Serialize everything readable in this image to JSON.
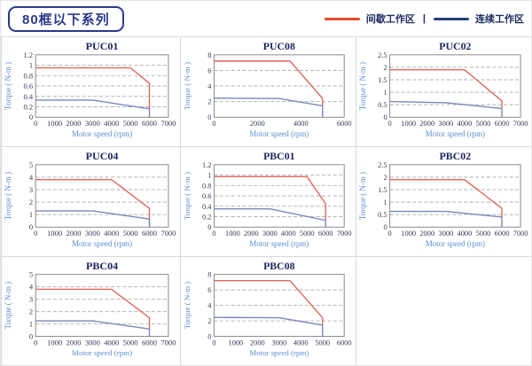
{
  "header": {
    "title_badge": {
      "label": "80框以下系列",
      "color": "#2b3a8c"
    },
    "legend": {
      "separator": "|",
      "items": [
        {
          "label": "间歇工作区",
          "swatch_color": "#e64a2e"
        },
        {
          "label": "连续工作区",
          "swatch_color": "#24407e"
        }
      ]
    }
  },
  "chart_style": {
    "intermittent_line_color": "#e0685e",
    "continuous_line_color": "#7d86ba",
    "grid_border_color": "#d8d8d8",
    "plot_border_color": "#8a8a8a",
    "title_color": "#1b255e",
    "axis_label_color": "#5b8fd0"
  },
  "chart_data": [
    {
      "type": "line",
      "title": "PUC01",
      "xlabel": "Motor speed (rpm)",
      "ylabel": "Torque ( N-m )",
      "xlim": [
        0,
        7000
      ],
      "ylim": [
        0,
        1.2
      ],
      "xticks": [
        0,
        1000,
        2000,
        3000,
        4000,
        5000,
        6000,
        7000
      ],
      "yticks": [
        0,
        0.2,
        0.4,
        0.6,
        0.8,
        1,
        1.2
      ],
      "series": [
        {
          "name": "间歇工作区",
          "color": "#e0685e",
          "points": [
            [
              0,
              0.95
            ],
            [
              5000,
              0.95
            ],
            [
              6000,
              0.65
            ],
            [
              6000,
              0.15
            ]
          ]
        },
        {
          "name": "连续工作区",
          "color": "#7d86ba",
          "points": [
            [
              0,
              0.33
            ],
            [
              3000,
              0.33
            ],
            [
              6000,
              0.16
            ],
            [
              6000,
              0
            ]
          ]
        }
      ]
    },
    {
      "type": "line",
      "title": "PUC08",
      "xlabel": "Motor speed (rpm)",
      "ylabel": "Torque ( N-m )",
      "xlim": [
        0,
        6000
      ],
      "ylim": [
        0,
        8
      ],
      "xticks": [
        0,
        2000,
        4000,
        6000
      ],
      "yticks": [
        0,
        2,
        4,
        6,
        8
      ],
      "series": [
        {
          "name": "间歇工作区",
          "color": "#e0685e",
          "points": [
            [
              0,
              7.2
            ],
            [
              3500,
              7.2
            ],
            [
              5000,
              2.4
            ],
            [
              5000,
              1.5
            ]
          ]
        },
        {
          "name": "连续工作区",
          "color": "#7d86ba",
          "points": [
            [
              0,
              2.45
            ],
            [
              3000,
              2.4
            ],
            [
              5000,
              1.45
            ],
            [
              5000,
              0
            ]
          ]
        }
      ]
    },
    {
      "type": "line",
      "title": "PUC02",
      "xlabel": "Motor speed (rpm)",
      "ylabel": "Torque ( N-m )",
      "xlim": [
        0,
        7000
      ],
      "ylim": [
        0,
        2.5
      ],
      "xticks": [
        0,
        1000,
        2000,
        3000,
        4000,
        5000,
        6000,
        7000
      ],
      "yticks": [
        0,
        0.5,
        1,
        1.5,
        2,
        2.5
      ],
      "series": [
        {
          "name": "间歇工作区",
          "color": "#e0685e",
          "points": [
            [
              0,
              1.9
            ],
            [
              4000,
              1.9
            ],
            [
              6000,
              0.65
            ],
            [
              6000,
              0.38
            ]
          ]
        },
        {
          "name": "连续工作区",
          "color": "#7d86ba",
          "points": [
            [
              0,
              0.63
            ],
            [
              3000,
              0.58
            ],
            [
              6000,
              0.35
            ],
            [
              6000,
              0
            ]
          ]
        }
      ]
    },
    {
      "type": "line",
      "title": "PUC04",
      "xlabel": "Motor speed (rpm)",
      "ylabel": "Torque ( N-m )",
      "xlim": [
        0,
        7000
      ],
      "ylim": [
        0,
        5
      ],
      "xticks": [
        0,
        1000,
        2000,
        3000,
        4000,
        5000,
        6000,
        7000
      ],
      "yticks": [
        0,
        1,
        2,
        3,
        4,
        5
      ],
      "series": [
        {
          "name": "间歇工作区",
          "color": "#e0685e",
          "points": [
            [
              0,
              3.8
            ],
            [
              4000,
              3.8
            ],
            [
              6000,
              1.5
            ],
            [
              6000,
              0.1
            ]
          ]
        },
        {
          "name": "连续工作区",
          "color": "#7d86ba",
          "points": [
            [
              0,
              1.3
            ],
            [
              3000,
              1.3
            ],
            [
              6000,
              0.65
            ],
            [
              6000,
              0
            ]
          ]
        }
      ]
    },
    {
      "type": "line",
      "title": "PBC01",
      "xlabel": "Motor speed (rpm)",
      "ylabel": "Torque ( N-m )",
      "xlim": [
        0,
        7000
      ],
      "ylim": [
        0,
        1.2
      ],
      "xticks": [
        0,
        1000,
        2000,
        3000,
        4000,
        5000,
        6000,
        7000
      ],
      "yticks": [
        0,
        0.2,
        0.4,
        0.6,
        0.8,
        1,
        1.2
      ],
      "series": [
        {
          "name": "间歇工作区",
          "color": "#e0685e",
          "points": [
            [
              0,
              0.97
            ],
            [
              5000,
              0.97
            ],
            [
              6000,
              0.45
            ],
            [
              6000,
              0.13
            ]
          ]
        },
        {
          "name": "连续工作区",
          "color": "#7d86ba",
          "points": [
            [
              0,
              0.35
            ],
            [
              3000,
              0.35
            ],
            [
              6000,
              0.13
            ],
            [
              6000,
              0
            ]
          ]
        }
      ]
    },
    {
      "type": "line",
      "title": "PBC02",
      "xlabel": "Motor speed (rpm)",
      "ylabel": "Torque ( N-m )",
      "xlim": [
        0,
        7000
      ],
      "ylim": [
        0,
        2.5
      ],
      "xticks": [
        0,
        1000,
        2000,
        3000,
        4000,
        5000,
        6000,
        7000
      ],
      "yticks": [
        0,
        0.5,
        1,
        1.5,
        2,
        2.5
      ],
      "series": [
        {
          "name": "间歇工作区",
          "color": "#e0685e",
          "points": [
            [
              0,
              1.9
            ],
            [
              4000,
              1.9
            ],
            [
              6000,
              0.75
            ],
            [
              6000,
              0.4
            ]
          ]
        },
        {
          "name": "连续工作区",
          "color": "#7d86ba",
          "points": [
            [
              0,
              0.63
            ],
            [
              3000,
              0.63
            ],
            [
              6000,
              0.4
            ],
            [
              6000,
              0
            ]
          ]
        }
      ]
    },
    {
      "type": "line",
      "title": "PBC04",
      "xlabel": "Motor speed (rpm)",
      "ylabel": "Torque ( N-m )",
      "xlim": [
        0,
        7000
      ],
      "ylim": [
        0,
        5
      ],
      "xticks": [
        0,
        1000,
        2000,
        3000,
        4000,
        5000,
        6000,
        7000
      ],
      "yticks": [
        0,
        1,
        2,
        3,
        4,
        5
      ],
      "series": [
        {
          "name": "间歇工作区",
          "color": "#e0685e",
          "points": [
            [
              0,
              3.8
            ],
            [
              4000,
              3.8
            ],
            [
              6000,
              1.5
            ],
            [
              6000,
              0.6
            ]
          ]
        },
        {
          "name": "连续工作区",
          "color": "#7d86ba",
          "points": [
            [
              0,
              1.25
            ],
            [
              3000,
              1.25
            ],
            [
              6000,
              0.6
            ],
            [
              6000,
              0
            ]
          ]
        }
      ]
    },
    {
      "type": "line",
      "title": "PBC08",
      "xlabel": "Motor speed (rpm)",
      "ylabel": "Torque ( N-m )",
      "xlim": [
        0,
        6000
      ],
      "ylim": [
        0,
        8
      ],
      "xticks": [
        0,
        1000,
        2000,
        3000,
        4000,
        5000,
        6000
      ],
      "yticks": [
        0,
        2,
        4,
        6,
        8
      ],
      "series": [
        {
          "name": "间歇工作区",
          "color": "#e0685e",
          "points": [
            [
              0,
              7.2
            ],
            [
              3500,
              7.2
            ],
            [
              5000,
              2.4
            ],
            [
              5000,
              1.45
            ]
          ]
        },
        {
          "name": "连续工作区",
          "color": "#7d86ba",
          "points": [
            [
              0,
              2.45
            ],
            [
              3000,
              2.4
            ],
            [
              5000,
              1.45
            ],
            [
              5000,
              0
            ]
          ]
        }
      ]
    }
  ]
}
